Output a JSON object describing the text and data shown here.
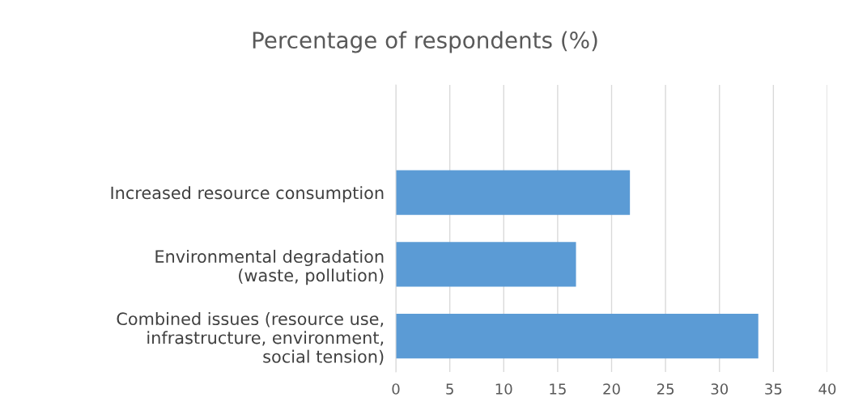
{
  "chart_data": {
    "type": "bar",
    "orientation": "horizontal",
    "title": "Percentage of respondents (%)",
    "categories": [
      null,
      "Increased resource consumption",
      "Environmental degradation (waste, pollution)",
      "Combined issues (resource use, infrastructure, environment, social tension)"
    ],
    "values": [
      null,
      21.7,
      16.7,
      33.6
    ],
    "color": "#5b9bd5",
    "xlim": [
      0,
      40
    ],
    "xticks": [
      0,
      5,
      10,
      15,
      20,
      25,
      30,
      35,
      40
    ],
    "grid": "x",
    "legend": false
  }
}
